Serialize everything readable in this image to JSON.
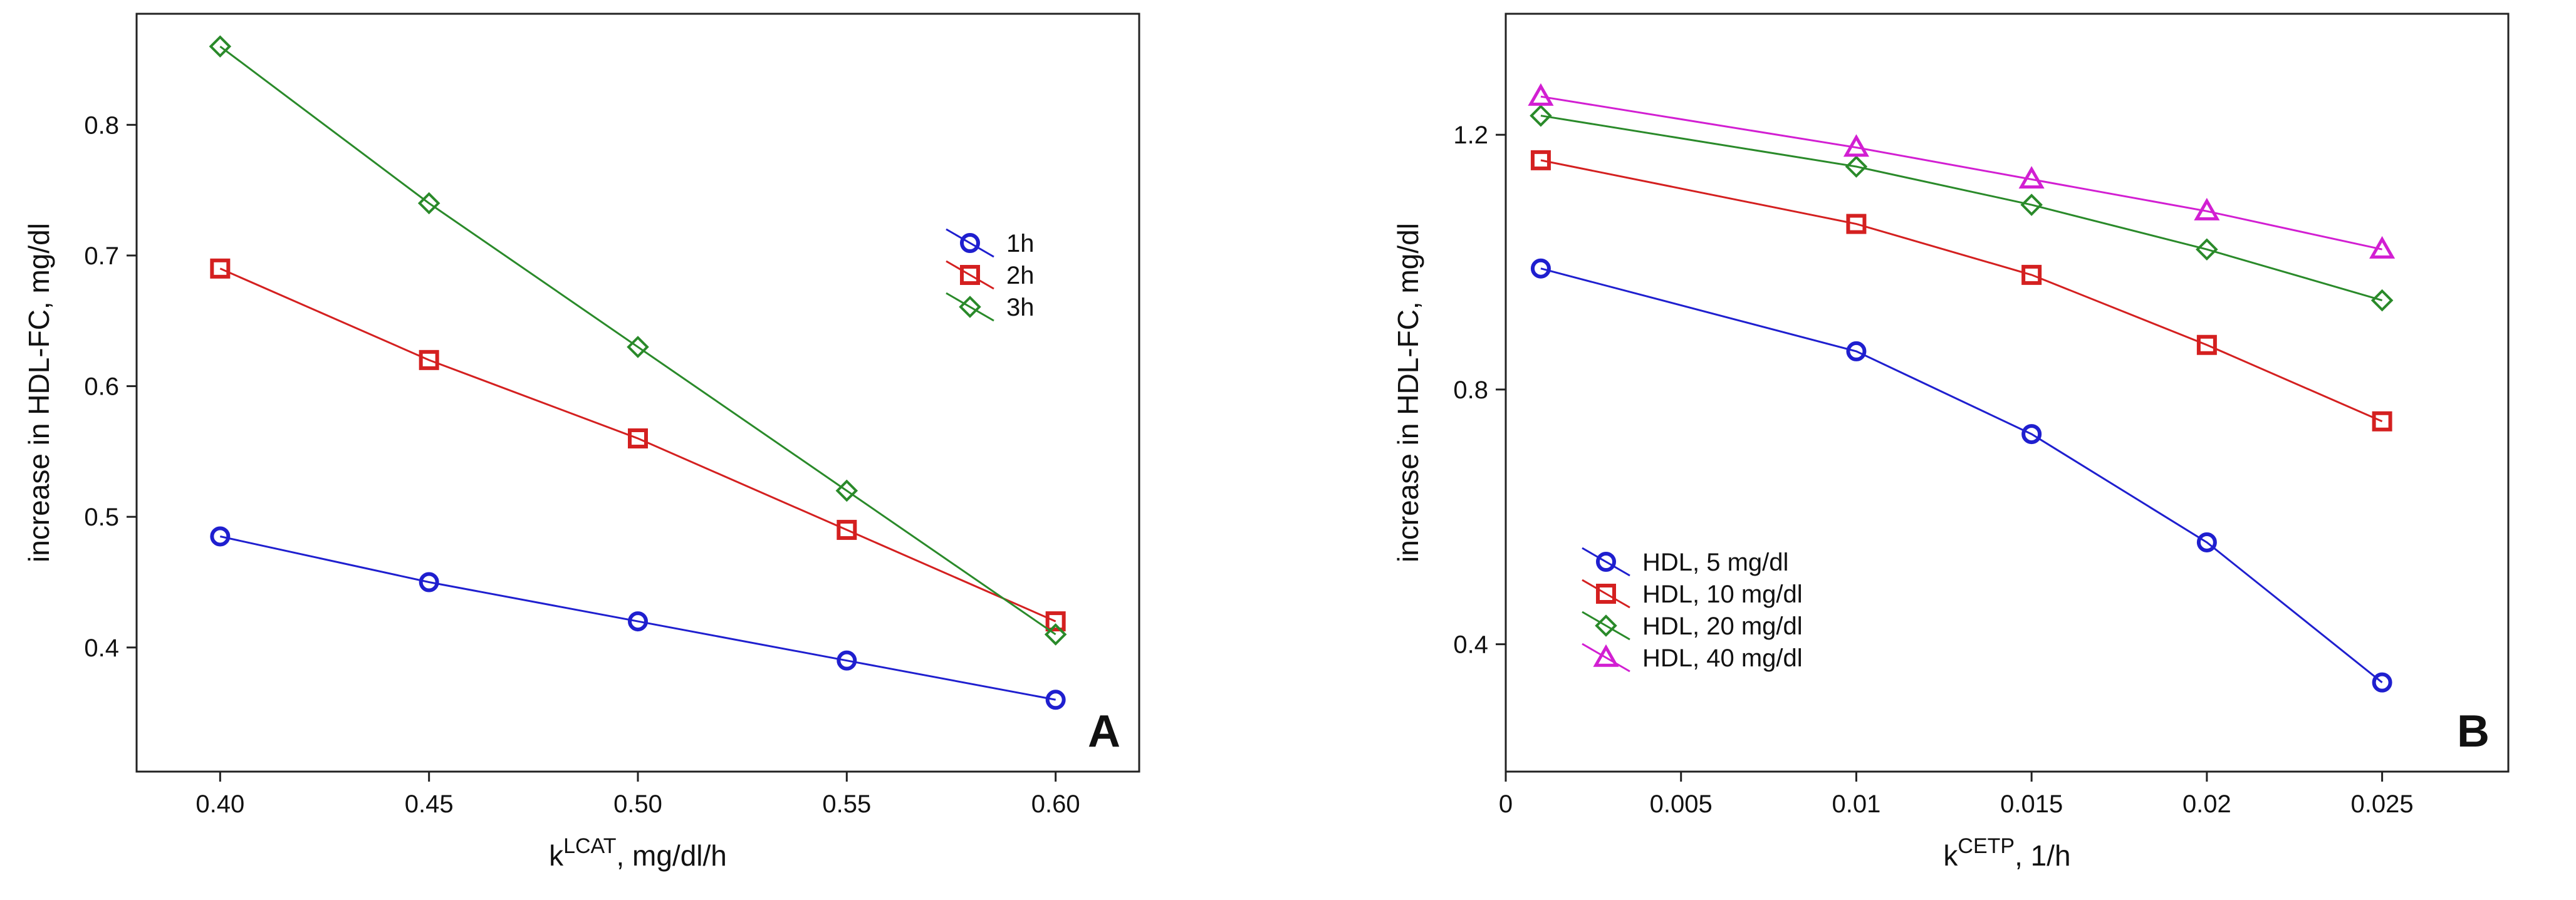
{
  "chart_data": [
    {
      "type": "line",
      "panel": "A",
      "panel_label": "A",
      "xlabel_base": "k",
      "xlabel_sup": "LCAT",
      "xlabel_suffix": ", mg/dl/h",
      "ylabel": "increase in HDL-FC, mg/dl",
      "xlim": [
        0.38,
        0.62
      ],
      "ylim": [
        0.305,
        0.885
      ],
      "xticks": [
        "0.40",
        "0.45",
        "0.50",
        "0.55",
        "0.60"
      ],
      "yticks": [
        "0.4",
        "0.5",
        "0.6",
        "0.7",
        "0.8"
      ],
      "grid": false,
      "legend_position": "top-right",
      "x": [
        0.4,
        0.45,
        0.5,
        0.55,
        0.6
      ],
      "series": [
        {
          "name": "1h",
          "marker": "circle",
          "color": "#1f1fcf",
          "values": [
            0.485,
            0.45,
            0.42,
            0.39,
            0.36
          ]
        },
        {
          "name": "2h",
          "marker": "square",
          "color": "#d42020",
          "values": [
            0.69,
            0.62,
            0.56,
            0.49,
            0.42
          ]
        },
        {
          "name": "3h",
          "marker": "diamond",
          "color": "#2a8a2a",
          "values": [
            0.86,
            0.74,
            0.63,
            0.52,
            0.41
          ]
        }
      ]
    },
    {
      "type": "line",
      "panel": "B",
      "panel_label": "B",
      "xlabel_base": "k",
      "xlabel_sup": "CETP",
      "xlabel_suffix": ", 1/h",
      "ylabel": "increase in HDL-FC, mg/dl",
      "xlim": [
        0,
        0.0286
      ],
      "ylim": [
        0.2,
        1.39
      ],
      "xticks": [
        "0",
        "0.005",
        "0.01",
        "0.015",
        "0.02",
        "0.025"
      ],
      "yticks": [
        "0.4",
        "0.8",
        "1.2"
      ],
      "grid": false,
      "legend_position": "bottom-left",
      "x": [
        0.001,
        0.01,
        0.015,
        0.02,
        0.025
      ],
      "series": [
        {
          "name": "HDL, 5 mg/dl",
          "marker": "circle",
          "color": "#1f1fcf",
          "values": [
            0.99,
            0.86,
            0.73,
            0.56,
            0.34
          ]
        },
        {
          "name": "HDL, 10 mg/dl",
          "marker": "square",
          "color": "#d42020",
          "values": [
            1.16,
            1.06,
            0.98,
            0.87,
            0.75
          ]
        },
        {
          "name": "HDL, 20 mg/dl",
          "marker": "diamond",
          "color": "#2a8a2a",
          "values": [
            1.23,
            1.15,
            1.09,
            1.02,
            0.94
          ]
        },
        {
          "name": "HDL, 40 mg/dl",
          "marker": "triangle",
          "color": "#d21fd2",
          "values": [
            1.26,
            1.18,
            1.13,
            1.08,
            1.02
          ]
        }
      ]
    }
  ]
}
